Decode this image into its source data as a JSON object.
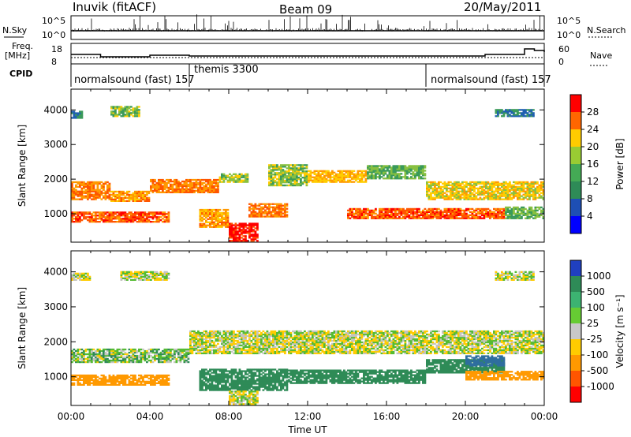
{
  "header": {
    "station": "Inuvik (fitACF)",
    "beam": "Beam 09",
    "date": "20/May/2011"
  },
  "aux_labels": {
    "nsky": "N.Sky",
    "nsky_ticks": [
      "10^5",
      "10^0"
    ],
    "nsearch": "N.Search",
    "nsearch_ticks": [
      "10^5",
      "10^0"
    ],
    "freq_line1": "Freq.",
    "freq_line2": "[MHz]",
    "freq_ticks": [
      "18",
      "8"
    ],
    "nave": "Nave",
    "nave_ticks": [
      "60",
      "0"
    ],
    "cpid": "CPID"
  },
  "cpid_segments": [
    {
      "label": "normalsound (fast) 157",
      "start_hour": 0
    },
    {
      "label": "themis 3300",
      "start_hour": 6
    },
    {
      "label": "normalsound (fast) 157",
      "start_hour": 18
    }
  ],
  "power_colorbar": {
    "label": "Power [dB]",
    "ticks": [
      "28",
      "24",
      "20",
      "16",
      "12",
      "8",
      "4"
    ],
    "colors": [
      "#ff0000",
      "#ff6600",
      "#ffcc00",
      "#99cc33",
      "#44aa55",
      "#2e8b57",
      "#1e4fb4",
      "#0000ff"
    ]
  },
  "velocity_colorbar": {
    "label": "Velocity [m s⁻¹]",
    "ticks": [
      "1000",
      "500",
      "100",
      "25",
      "-25",
      "-100",
      "-500",
      "-1000"
    ],
    "colors": [
      "#2040c0",
      "#2e8b57",
      "#3cb371",
      "#66cc33",
      "#c8c8c8",
      "#ffcc00",
      "#ff9900",
      "#ff5500",
      "#ff0000"
    ]
  },
  "chart_data": [
    {
      "type": "heatmap",
      "title": "",
      "xlabel": "",
      "ylabel": "Slant Range [km]",
      "xlim": [
        0,
        24
      ],
      "ylim": [
        180,
        4600
      ],
      "yticks": [
        1000,
        2000,
        3000,
        4000
      ],
      "value_label": "Power [dB]",
      "bands": [
        {
          "t0": 0.0,
          "t1": 2.0,
          "r0": 1400,
          "r1": 1900,
          "value": 24
        },
        {
          "t0": 2.0,
          "t1": 4.0,
          "r0": 1350,
          "r1": 1650,
          "value": 22
        },
        {
          "t0": 4.0,
          "t1": 7.5,
          "r0": 1600,
          "r1": 2000,
          "value": 24
        },
        {
          "t0": 7.5,
          "t1": 9.0,
          "r0": 1900,
          "r1": 2150,
          "value": 14
        },
        {
          "t0": 10.0,
          "t1": 12.0,
          "r0": 1800,
          "r1": 2400,
          "value": 14
        },
        {
          "t0": 12.0,
          "t1": 15.0,
          "r0": 1900,
          "r1": 2250,
          "value": 20
        },
        {
          "t0": 15.0,
          "t1": 18.0,
          "r0": 2000,
          "r1": 2400,
          "value": 12
        },
        {
          "t0": 18.0,
          "t1": 24.0,
          "r0": 1400,
          "r1": 1900,
          "value": 18
        },
        {
          "t0": 0.0,
          "t1": 5.0,
          "r0": 750,
          "r1": 1050,
          "value": 26
        },
        {
          "t0": 6.5,
          "t1": 8.0,
          "r0": 600,
          "r1": 1100,
          "value": 22
        },
        {
          "t0": 8.0,
          "t1": 9.5,
          "r0": 200,
          "r1": 700,
          "value": 30
        },
        {
          "t0": 9.0,
          "t1": 11.0,
          "r0": 900,
          "r1": 1300,
          "value": 24
        },
        {
          "t0": 14.0,
          "t1": 18.0,
          "r0": 850,
          "r1": 1150,
          "value": 26
        },
        {
          "t0": 18.0,
          "t1": 22.0,
          "r0": 850,
          "r1": 1150,
          "value": 26
        },
        {
          "t0": 22.0,
          "t1": 24.0,
          "r0": 850,
          "r1": 1200,
          "value": 12
        },
        {
          "t0": 0.0,
          "t1": 0.6,
          "r0": 3750,
          "r1": 3950,
          "value": 8
        },
        {
          "t0": 2.0,
          "t1": 3.5,
          "r0": 3800,
          "r1": 4100,
          "value": 14
        },
        {
          "t0": 21.5,
          "t1": 23.5,
          "r0": 3800,
          "r1": 4000,
          "value": 8
        }
      ]
    },
    {
      "type": "heatmap",
      "title": "",
      "xlabel": "Time UT",
      "ylabel": "Slant Range [km]",
      "xlim": [
        0,
        24
      ],
      "ylim": [
        180,
        4600
      ],
      "yticks": [
        1000,
        2000,
        3000,
        4000
      ],
      "xticks": [
        "00:00",
        "04:00",
        "08:00",
        "12:00",
        "16:00",
        "20:00",
        "00:00"
      ],
      "value_label": "Velocity [m s⁻¹]",
      "bands": [
        {
          "t0": 6.0,
          "t1": 24.0,
          "r0": 1650,
          "r1": 2300,
          "value": 0
        },
        {
          "t0": 0.0,
          "t1": 6.0,
          "r0": 1400,
          "r1": 1800,
          "value": 50
        },
        {
          "t0": 0.0,
          "t1": 5.0,
          "r0": 750,
          "r1": 1050,
          "value": -300
        },
        {
          "t0": 6.5,
          "t1": 11.0,
          "r0": 600,
          "r1": 1200,
          "value": 300
        },
        {
          "t0": 11.0,
          "t1": 18.0,
          "r0": 800,
          "r1": 1200,
          "value": 200
        },
        {
          "t0": 18.0,
          "t1": 22.0,
          "r0": 1100,
          "r1": 1500,
          "value": 400
        },
        {
          "t0": 20.0,
          "t1": 22.0,
          "r0": 1300,
          "r1": 1600,
          "value": 800
        },
        {
          "t0": 20.0,
          "t1": 24.0,
          "r0": 900,
          "r1": 1150,
          "value": -300
        },
        {
          "t0": 8.0,
          "t1": 9.5,
          "r0": 200,
          "r1": 600,
          "value": 0
        },
        {
          "t0": 0.0,
          "t1": 1.0,
          "r0": 3750,
          "r1": 3950,
          "value": 0
        },
        {
          "t0": 2.5,
          "t1": 5.0,
          "r0": 3750,
          "r1": 4000,
          "value": 0
        },
        {
          "t0": 21.5,
          "t1": 23.5,
          "r0": 3750,
          "r1": 4000,
          "value": 0
        }
      ]
    }
  ]
}
